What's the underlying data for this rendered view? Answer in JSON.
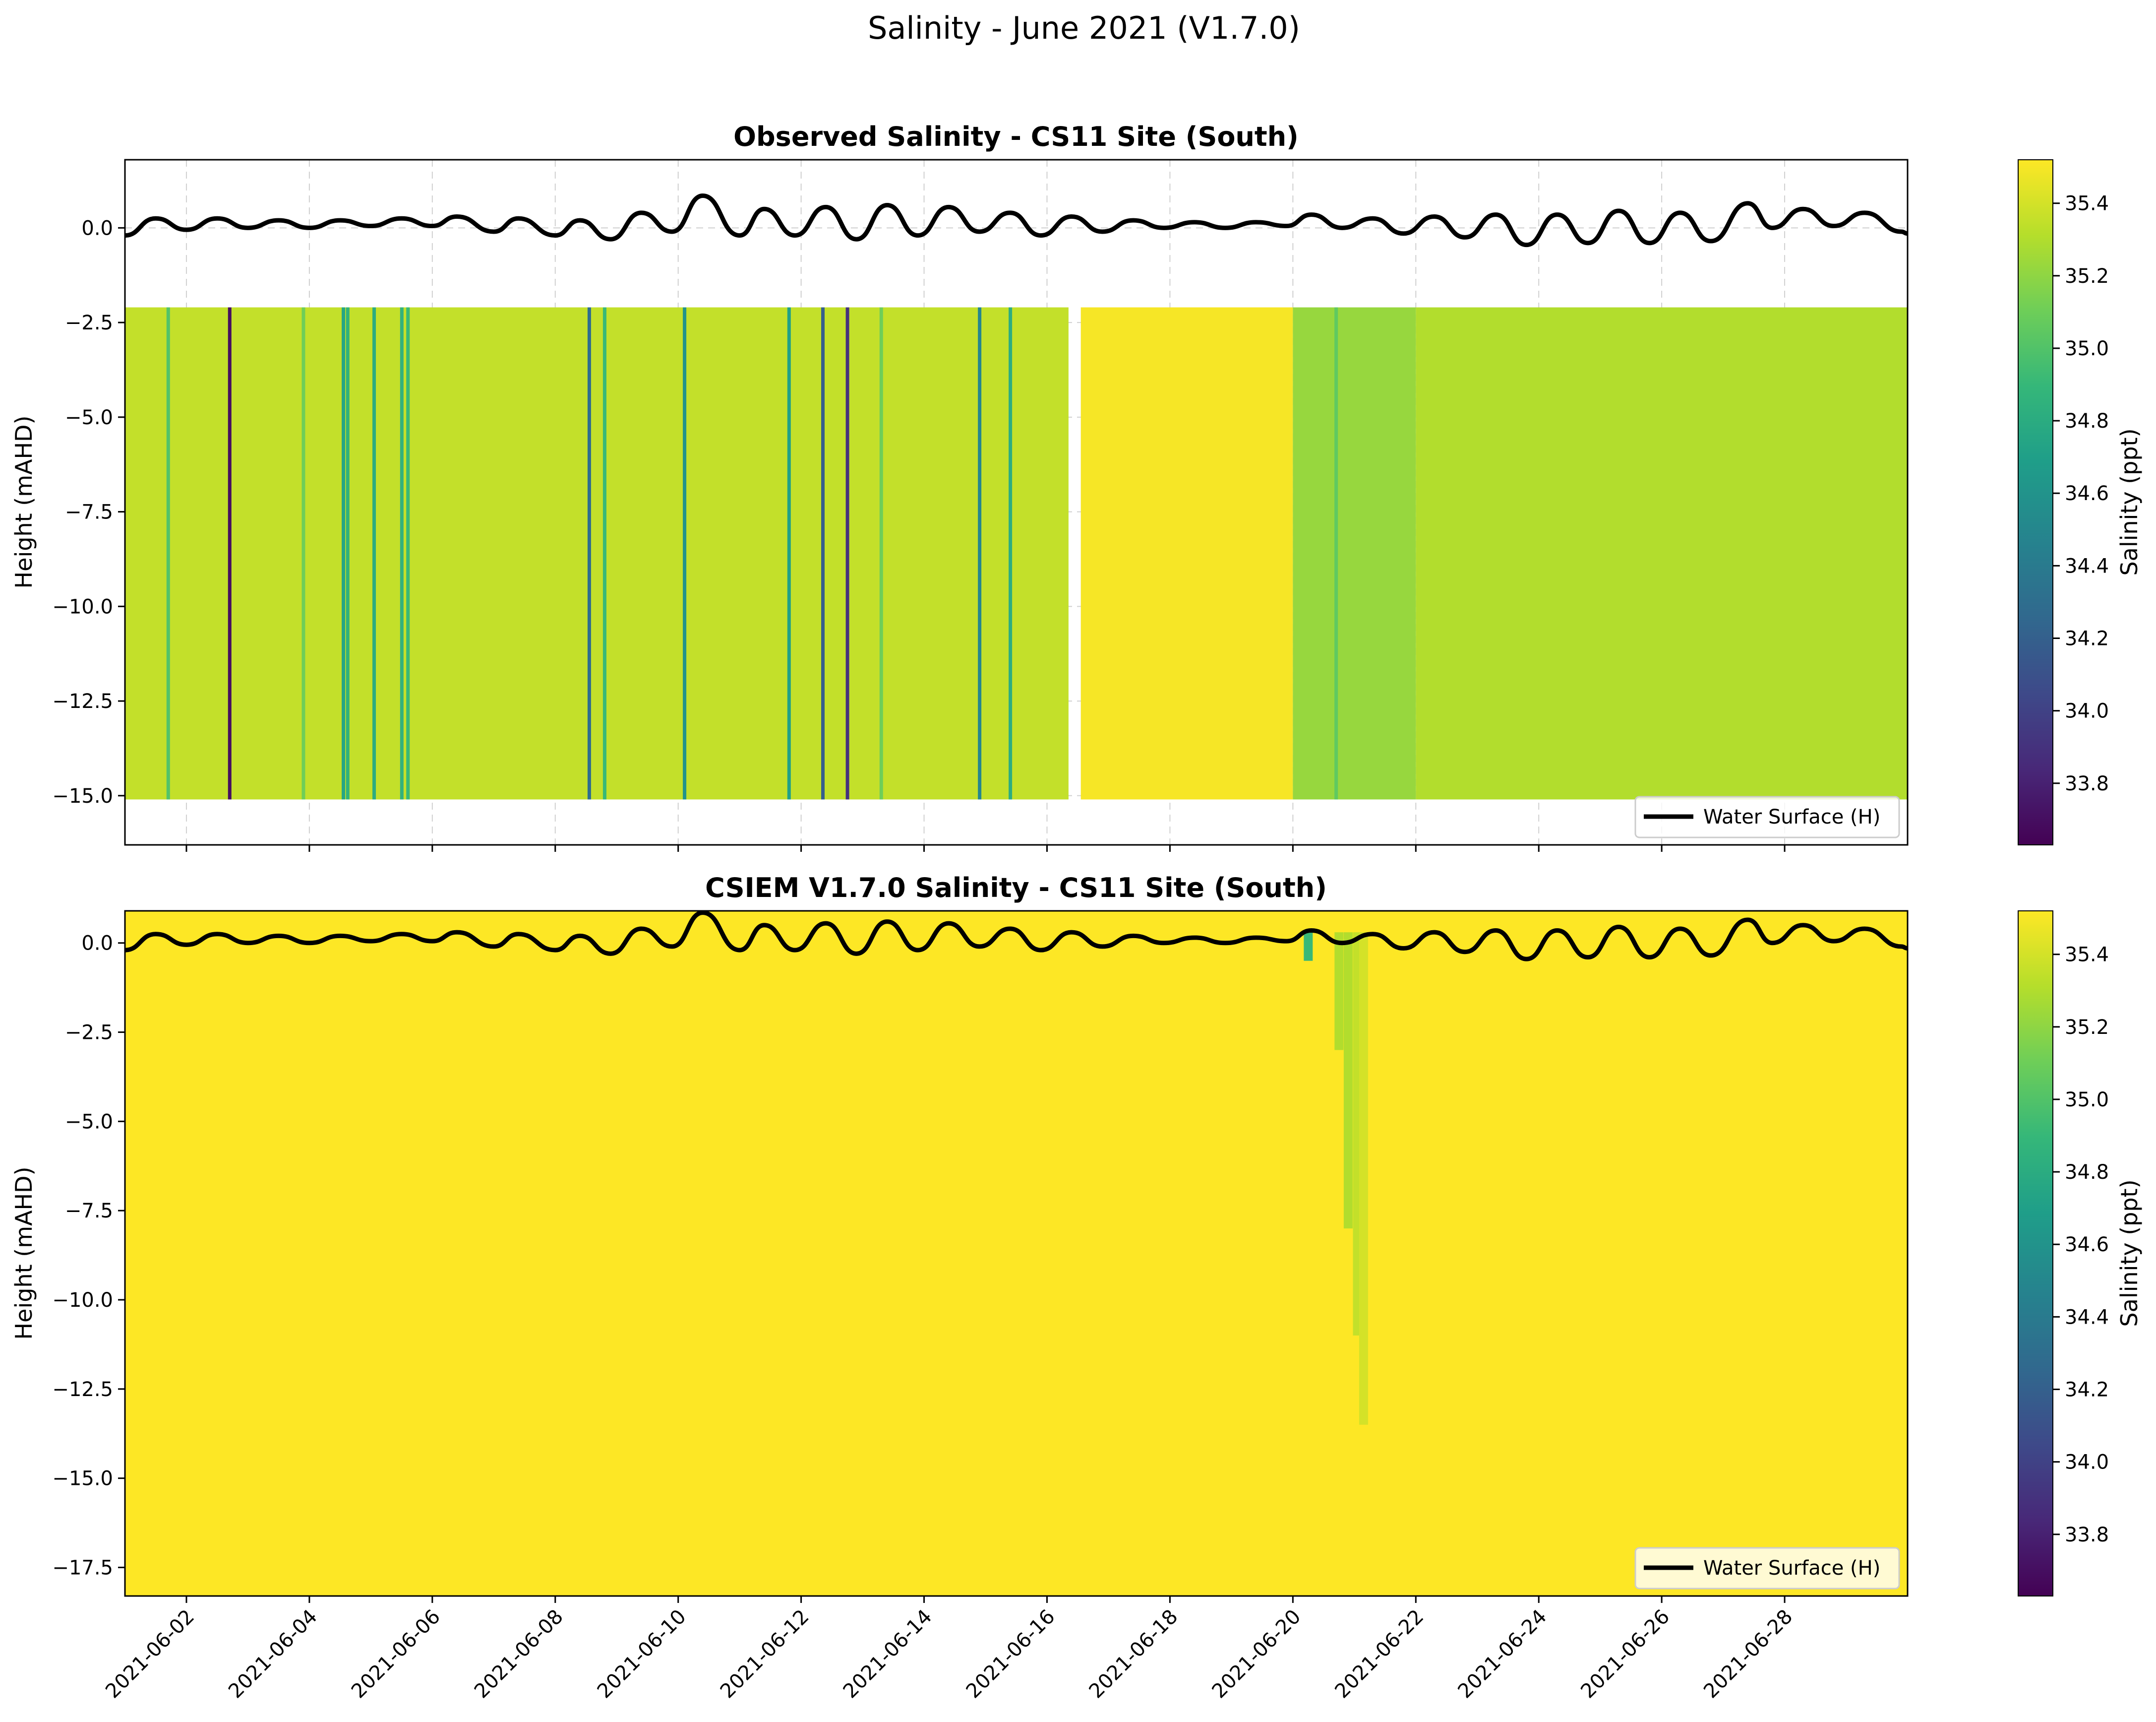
{
  "figure": {
    "title": "Salinity - June 2021 (V1.7.0)"
  },
  "colors": {
    "viridis": [
      "#440154",
      "#482878",
      "#3e4989",
      "#31688e",
      "#26828e",
      "#1f9e89",
      "#35b779",
      "#6ece58",
      "#b5de2b",
      "#fde725"
    ],
    "water_surface": "#000000",
    "grid": "#d0d0d0"
  },
  "chart_data": [
    {
      "type": "heatmap",
      "title": "Observed Salinity - CS11 Site (South)",
      "xlabel": "",
      "ylabel": "Height (mAHD)",
      "xlim": [
        "2021-06-01",
        "2021-06-30"
      ],
      "ylim": [
        -16.3,
        1.8
      ],
      "x_ticks": [
        "2021-06-02",
        "2021-06-04",
        "2021-06-06",
        "2021-06-08",
        "2021-06-10",
        "2021-06-12",
        "2021-06-14",
        "2021-06-16",
        "2021-06-18",
        "2021-06-20",
        "2021-06-22",
        "2021-06-24",
        "2021-06-26",
        "2021-06-28"
      ],
      "y_ticks": [
        0.0,
        -2.5,
        -5.0,
        -7.5,
        -10.0,
        -12.5,
        -15.0
      ],
      "y_tick_labels": [
        "0.0",
        "−2.5",
        "−5.0",
        "−7.5",
        "−10.0",
        "−12.5",
        "−15.0"
      ],
      "grid": true,
      "legend": {
        "label": "Water Surface (H)",
        "position": "lower-right"
      },
      "colorbar": {
        "label": "Salinity (ppt)",
        "range": [
          33.63,
          35.52
        ],
        "ticks": [
          "33.8",
          "34.0",
          "34.2",
          "34.4",
          "34.6",
          "34.8",
          "35.0",
          "35.2",
          "35.4"
        ],
        "tick_values": [
          33.8,
          34.0,
          34.2,
          34.4,
          34.6,
          34.8,
          35.0,
          35.2,
          35.4
        ]
      },
      "salinity_field": {
        "data_top": -2.1,
        "data_bottom": -15.1,
        "gap": [
          "2021-06-16.35",
          "2021-06-16.55"
        ],
        "segments": [
          {
            "from": "2021-06-01",
            "to": "2021-06-16.35",
            "salinity": 35.35
          },
          {
            "from": "2021-06-16.55",
            "to": "2021-06-20",
            "salinity": 35.5
          },
          {
            "from": "2021-06-20",
            "to": "2021-06-22",
            "salinity": 35.22
          },
          {
            "from": "2021-06-22",
            "to": "2021-06-30",
            "salinity": 35.3
          }
        ],
        "streaks": [
          {
            "date": "2021-06-02.7",
            "salinity": 33.7
          },
          {
            "date": "2021-06-04.55",
            "salinity": 34.75
          },
          {
            "date": "2021-06-04.62",
            "salinity": 34.85
          },
          {
            "date": "2021-06-05.05",
            "salinity": 34.8
          },
          {
            "date": "2021-06-05.5",
            "salinity": 34.85
          },
          {
            "date": "2021-06-05.6",
            "salinity": 34.9
          },
          {
            "date": "2021-06-08.55",
            "salinity": 34.3
          },
          {
            "date": "2021-06-08.8",
            "salinity": 34.9
          },
          {
            "date": "2021-06-10.1",
            "salinity": 34.6
          },
          {
            "date": "2021-06-11.8",
            "salinity": 34.7
          },
          {
            "date": "2021-06-12.35",
            "salinity": 34.2
          },
          {
            "date": "2021-06-12.75",
            "salinity": 33.9
          },
          {
            "date": "2021-06-14.9",
            "salinity": 34.5
          },
          {
            "date": "2021-06-15.4",
            "salinity": 34.8
          },
          {
            "date": "2021-06-01.7",
            "salinity": 35.0
          },
          {
            "date": "2021-06-03.9",
            "salinity": 35.1
          },
          {
            "date": "2021-06-13.3",
            "salinity": 35.1
          },
          {
            "date": "2021-06-20.7",
            "salinity": 35.05
          }
        ]
      },
      "water_surface_peaks": [
        {
          "date": "2021-06-01.0",
          "level": -0.2
        },
        {
          "date": "2021-06-01.5",
          "level": 0.25
        },
        {
          "date": "2021-06-02.0",
          "level": -0.05
        },
        {
          "date": "2021-06-02.5",
          "level": 0.25
        },
        {
          "date": "2021-06-03.0",
          "level": 0.0
        },
        {
          "date": "2021-06-03.5",
          "level": 0.2
        },
        {
          "date": "2021-06-04.0",
          "level": 0.0
        },
        {
          "date": "2021-06-04.5",
          "level": 0.2
        },
        {
          "date": "2021-06-05.0",
          "level": 0.05
        },
        {
          "date": "2021-06-05.5",
          "level": 0.25
        },
        {
          "date": "2021-06-06.0",
          "level": 0.05
        },
        {
          "date": "2021-06-06.4",
          "level": 0.3
        },
        {
          "date": "2021-06-07.0",
          "level": -0.1
        },
        {
          "date": "2021-06-07.4",
          "level": 0.25
        },
        {
          "date": "2021-06-08.0",
          "level": -0.2
        },
        {
          "date": "2021-06-08.4",
          "level": 0.2
        },
        {
          "date": "2021-06-08.9",
          "level": -0.3
        },
        {
          "date": "2021-06-09.4",
          "level": 0.4
        },
        {
          "date": "2021-06-09.9",
          "level": -0.1
        },
        {
          "date": "2021-06-10.4",
          "level": 0.85
        },
        {
          "date": "2021-06-11.0",
          "level": -0.2
        },
        {
          "date": "2021-06-11.4",
          "level": 0.5
        },
        {
          "date": "2021-06-11.9",
          "level": -0.2
        },
        {
          "date": "2021-06-12.4",
          "level": 0.55
        },
        {
          "date": "2021-06-12.9",
          "level": -0.3
        },
        {
          "date": "2021-06-13.4",
          "level": 0.6
        },
        {
          "date": "2021-06-13.9",
          "level": -0.2
        },
        {
          "date": "2021-06-14.4",
          "level": 0.55
        },
        {
          "date": "2021-06-14.9",
          "level": -0.1
        },
        {
          "date": "2021-06-15.4",
          "level": 0.4
        },
        {
          "date": "2021-06-15.9",
          "level": -0.2
        },
        {
          "date": "2021-06-16.4",
          "level": 0.3
        },
        {
          "date": "2021-06-16.9",
          "level": -0.1
        },
        {
          "date": "2021-06-17.4",
          "level": 0.2
        },
        {
          "date": "2021-06-17.9",
          "level": 0.0
        },
        {
          "date": "2021-06-18.4",
          "level": 0.15
        },
        {
          "date": "2021-06-18.9",
          "level": 0.0
        },
        {
          "date": "2021-06-19.4",
          "level": 0.15
        },
        {
          "date": "2021-06-19.9",
          "level": 0.05
        },
        {
          "date": "2021-06-20.3",
          "level": 0.35
        },
        {
          "date": "2021-06-20.8",
          "level": 0.0
        },
        {
          "date": "2021-06-21.3",
          "level": 0.25
        },
        {
          "date": "2021-06-21.8",
          "level": -0.15
        },
        {
          "date": "2021-06-22.3",
          "level": 0.3
        },
        {
          "date": "2021-06-22.8",
          "level": -0.25
        },
        {
          "date": "2021-06-23.3",
          "level": 0.35
        },
        {
          "date": "2021-06-23.8",
          "level": -0.45
        },
        {
          "date": "2021-06-24.3",
          "level": 0.35
        },
        {
          "date": "2021-06-24.8",
          "level": -0.4
        },
        {
          "date": "2021-06-25.3",
          "level": 0.45
        },
        {
          "date": "2021-06-25.8",
          "level": -0.4
        },
        {
          "date": "2021-06-26.3",
          "level": 0.4
        },
        {
          "date": "2021-06-26.8",
          "level": -0.35
        },
        {
          "date": "2021-06-27.4",
          "level": 0.65
        },
        {
          "date": "2021-06-27.8",
          "level": 0.0
        },
        {
          "date": "2021-06-28.3",
          "level": 0.5
        },
        {
          "date": "2021-06-28.8",
          "level": 0.05
        },
        {
          "date": "2021-06-29.3",
          "level": 0.4
        },
        {
          "date": "2021-06-29.9",
          "level": -0.1
        },
        {
          "date": "2021-06-30.0",
          "level": -0.15
        }
      ]
    },
    {
      "type": "heatmap",
      "title": "CSIEM V1.7.0 Salinity - CS11 Site (South)",
      "xlabel": "",
      "ylabel": "Height (mAHD)",
      "xlim": [
        "2021-06-01",
        "2021-06-30"
      ],
      "ylim": [
        -18.3,
        0.9
      ],
      "x_ticks": [
        "2021-06-02",
        "2021-06-04",
        "2021-06-06",
        "2021-06-08",
        "2021-06-10",
        "2021-06-12",
        "2021-06-14",
        "2021-06-16",
        "2021-06-18",
        "2021-06-20",
        "2021-06-22",
        "2021-06-24",
        "2021-06-26",
        "2021-06-28"
      ],
      "y_ticks": [
        0.0,
        -2.5,
        -5.0,
        -7.5,
        -10.0,
        -12.5,
        -15.0,
        -17.5
      ],
      "y_tick_labels": [
        "0.0",
        "−2.5",
        "−5.0",
        "−7.5",
        "−10.0",
        "−12.5",
        "−15.0",
        "−17.5"
      ],
      "grid": false,
      "legend": {
        "label": "Water Surface (H)",
        "position": "lower-right"
      },
      "colorbar": {
        "label": "Salinity (ppt)",
        "range": [
          33.63,
          35.52
        ],
        "ticks": [
          "33.8",
          "34.0",
          "34.2",
          "34.4",
          "34.6",
          "34.8",
          "35.0",
          "35.2",
          "35.4"
        ],
        "tick_values": [
          33.8,
          34.0,
          34.2,
          34.4,
          34.6,
          34.8,
          35.0,
          35.2,
          35.4
        ]
      },
      "salinity_field": {
        "background_salinity": 35.52,
        "bottom": -18.3,
        "plume": [
          {
            "date": "2021-06-20.25",
            "bottom": -0.5,
            "salinity": 34.9
          },
          {
            "date": "2021-06-20.75",
            "bottom": -3.0,
            "salinity": 35.3
          },
          {
            "date": "2021-06-20.9",
            "bottom": -8.0,
            "salinity": 35.3
          },
          {
            "date": "2021-06-21.05",
            "bottom": -11.0,
            "salinity": 35.35
          },
          {
            "date": "2021-06-21.15",
            "bottom": -13.5,
            "salinity": 35.4
          }
        ]
      },
      "water_surface_peaks": "same as observed panel"
    }
  ]
}
